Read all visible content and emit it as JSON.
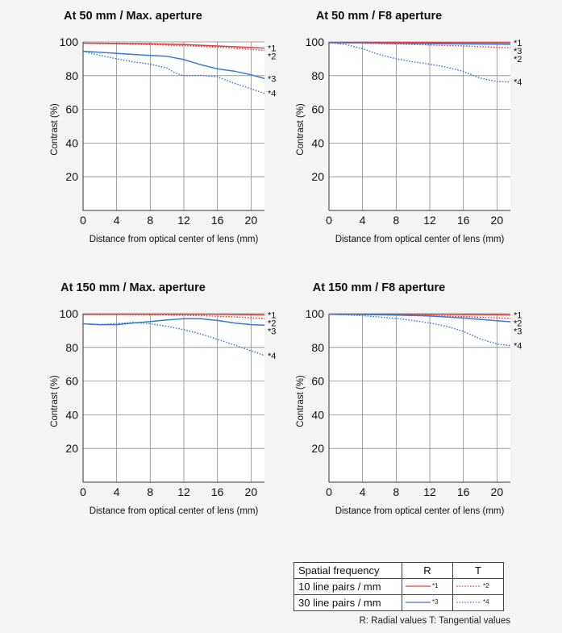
{
  "colors": {
    "radial": "#e23b3b",
    "tangential": "#3a78d8",
    "grid": "#888888",
    "axis": "#333333"
  },
  "legend": {
    "header": {
      "freq": "Spatial frequency",
      "r": "R",
      "t": "T"
    },
    "rows": [
      {
        "label": "10 line pairs / mm",
        "r_mark": "*1",
        "t_mark": "*2",
        "color": "#e23b3b"
      },
      {
        "label": "30 line pairs / mm",
        "r_mark": "*3",
        "t_mark": "*4",
        "color": "#3a78d8"
      }
    ],
    "footnote": "R: Radial values  T: Tangential values"
  },
  "chart_data": [
    {
      "type": "line",
      "title": "At 50 mm / Max. aperture",
      "xlabel": "Distance from optical center of lens (mm)",
      "ylabel": "Contrast (%)",
      "xlim": [
        0,
        21.6
      ],
      "ylim": [
        0,
        100
      ],
      "xticks": [
        0,
        4,
        8,
        12,
        16,
        20
      ],
      "yticks": [
        20,
        40,
        60,
        80,
        100
      ],
      "series": [
        {
          "name": "*1",
          "style": "solid",
          "color": "#e23b3b",
          "x": [
            0,
            4,
            8,
            12,
            16,
            20,
            21.6
          ],
          "y": [
            99.3,
            99.2,
            98.9,
            98.4,
            97.6,
            96.7,
            96.3
          ]
        },
        {
          "name": "*2",
          "style": "dotted",
          "color": "#e23b3b",
          "x": [
            0,
            4,
            8,
            12,
            16,
            20,
            21.6
          ],
          "y": [
            99.2,
            98.9,
            98.4,
            97.8,
            96.9,
            95.6,
            95.0
          ]
        },
        {
          "name": "*3",
          "style": "solid",
          "color": "#3a78d8",
          "x": [
            0,
            4,
            8,
            10,
            12,
            14,
            16,
            18,
            20,
            21.6
          ],
          "y": [
            94.5,
            93.2,
            92.0,
            91.5,
            89.5,
            86.5,
            84.0,
            82.7,
            80.5,
            78.3
          ]
        },
        {
          "name": "*4",
          "style": "dotted",
          "color": "#3a78d8",
          "x": [
            0,
            2,
            4,
            6,
            8,
            10,
            11,
            12,
            14,
            16,
            18,
            20,
            21.6
          ],
          "y": [
            94.5,
            92.0,
            90.0,
            88.2,
            86.8,
            84.5,
            81.5,
            80.0,
            80.2,
            79.3,
            75.5,
            72.2,
            69.5
          ]
        }
      ]
    },
    {
      "type": "line",
      "title": "At 50 mm / F8 aperture",
      "xlabel": "Distance from optical center of lens (mm)",
      "ylabel": "Contrast (%)",
      "xlim": [
        0,
        21.6
      ],
      "ylim": [
        0,
        100
      ],
      "xticks": [
        0,
        4,
        8,
        12,
        16,
        20
      ],
      "yticks": [
        20,
        40,
        60,
        80,
        100
      ],
      "series": [
        {
          "name": "*1",
          "style": "solid",
          "color": "#e23b3b",
          "x": [
            0,
            4,
            8,
            12,
            16,
            20,
            21.6
          ],
          "y": [
            99.7,
            99.7,
            99.6,
            99.6,
            99.5,
            99.5,
            99.5
          ]
        },
        {
          "name": "*2",
          "style": "dotted",
          "color": "#e23b3b",
          "x": [
            0,
            4,
            8,
            12,
            16,
            20,
            21.6
          ],
          "y": [
            99.6,
            99.3,
            98.8,
            98.2,
            97.6,
            96.8,
            96.5
          ]
        },
        {
          "name": "*3",
          "style": "solid",
          "color": "#3a78d8",
          "x": [
            0,
            4,
            8,
            12,
            16,
            20,
            21.6
          ],
          "y": [
            99.5,
            99.4,
            99.2,
            99.0,
            98.8,
            98.7,
            98.6
          ]
        },
        {
          "name": "*4",
          "style": "dotted",
          "color": "#3a78d8",
          "x": [
            0,
            2,
            4,
            6,
            8,
            10,
            12,
            14,
            16,
            18,
            20,
            21.6
          ],
          "y": [
            99.5,
            98.5,
            96.0,
            92.5,
            90.0,
            88.2,
            86.8,
            85.0,
            82.5,
            78.5,
            76.5,
            76.2
          ]
        }
      ]
    },
    {
      "type": "line",
      "title": "At 150 mm / Max. aperture",
      "xlabel": "Distance from optical center of lens (mm)",
      "ylabel": "Contrast (%)",
      "xlim": [
        0,
        21.6
      ],
      "ylim": [
        0,
        100
      ],
      "xticks": [
        0,
        4,
        8,
        12,
        16,
        20
      ],
      "yticks": [
        20,
        40,
        60,
        80,
        100
      ],
      "series": [
        {
          "name": "*1",
          "style": "solid",
          "color": "#e23b3b",
          "x": [
            0,
            4,
            8,
            12,
            16,
            20,
            21.6
          ],
          "y": [
            99.6,
            99.7,
            99.7,
            99.7,
            99.6,
            99.4,
            99.3
          ]
        },
        {
          "name": "*2",
          "style": "dotted",
          "color": "#e23b3b",
          "x": [
            0,
            4,
            8,
            12,
            16,
            20,
            21.6
          ],
          "y": [
            99.5,
            99.5,
            99.4,
            99.1,
            98.5,
            97.6,
            97.2
          ]
        },
        {
          "name": "*3",
          "style": "solid",
          "color": "#3a78d8",
          "x": [
            0,
            2,
            4,
            6,
            8,
            10,
            12,
            14,
            16,
            18,
            20,
            21.6
          ],
          "y": [
            94.0,
            93.5,
            93.5,
            94.5,
            95.3,
            96.3,
            97.0,
            97.0,
            96.0,
            94.5,
            93.5,
            93.2
          ]
        },
        {
          "name": "*4",
          "style": "dotted",
          "color": "#3a78d8",
          "x": [
            0,
            2,
            4,
            6,
            8,
            10,
            12,
            14,
            16,
            18,
            20,
            21.6
          ],
          "y": [
            94.0,
            93.5,
            94.2,
            94.8,
            94.0,
            92.5,
            90.5,
            88.0,
            84.8,
            81.5,
            78.0,
            75.2
          ]
        }
      ]
    },
    {
      "type": "line",
      "title": "At 150 mm / F8 aperture",
      "xlabel": "Distance from optical center of lens (mm)",
      "ylabel": "Contrast (%)",
      "xlim": [
        0,
        21.6
      ],
      "ylim": [
        0,
        100
      ],
      "xticks": [
        0,
        4,
        8,
        12,
        16,
        20
      ],
      "yticks": [
        20,
        40,
        60,
        80,
        100
      ],
      "series": [
        {
          "name": "*1",
          "style": "solid",
          "color": "#e23b3b",
          "x": [
            0,
            4,
            8,
            12,
            16,
            20,
            21.6
          ],
          "y": [
            99.7,
            99.7,
            99.7,
            99.6,
            99.5,
            99.4,
            99.3
          ]
        },
        {
          "name": "*2",
          "style": "dotted",
          "color": "#e23b3b",
          "x": [
            0,
            4,
            8,
            12,
            16,
            20,
            21.6
          ],
          "y": [
            99.6,
            99.5,
            99.3,
            98.9,
            98.3,
            97.5,
            97.2
          ]
        },
        {
          "name": "*3",
          "style": "solid",
          "color": "#3a78d8",
          "x": [
            0,
            4,
            8,
            12,
            16,
            20,
            21.6
          ],
          "y": [
            99.6,
            99.5,
            99.2,
            98.6,
            97.4,
            95.8,
            95.2
          ]
        },
        {
          "name": "*4",
          "style": "dotted",
          "color": "#3a78d8",
          "x": [
            0,
            2,
            4,
            6,
            8,
            10,
            12,
            14,
            16,
            18,
            20,
            21.6
          ],
          "y": [
            99.6,
            99.3,
            98.8,
            98.0,
            97.2,
            96.0,
            94.5,
            92.5,
            89.5,
            85.0,
            82.0,
            81.0
          ]
        }
      ]
    }
  ]
}
